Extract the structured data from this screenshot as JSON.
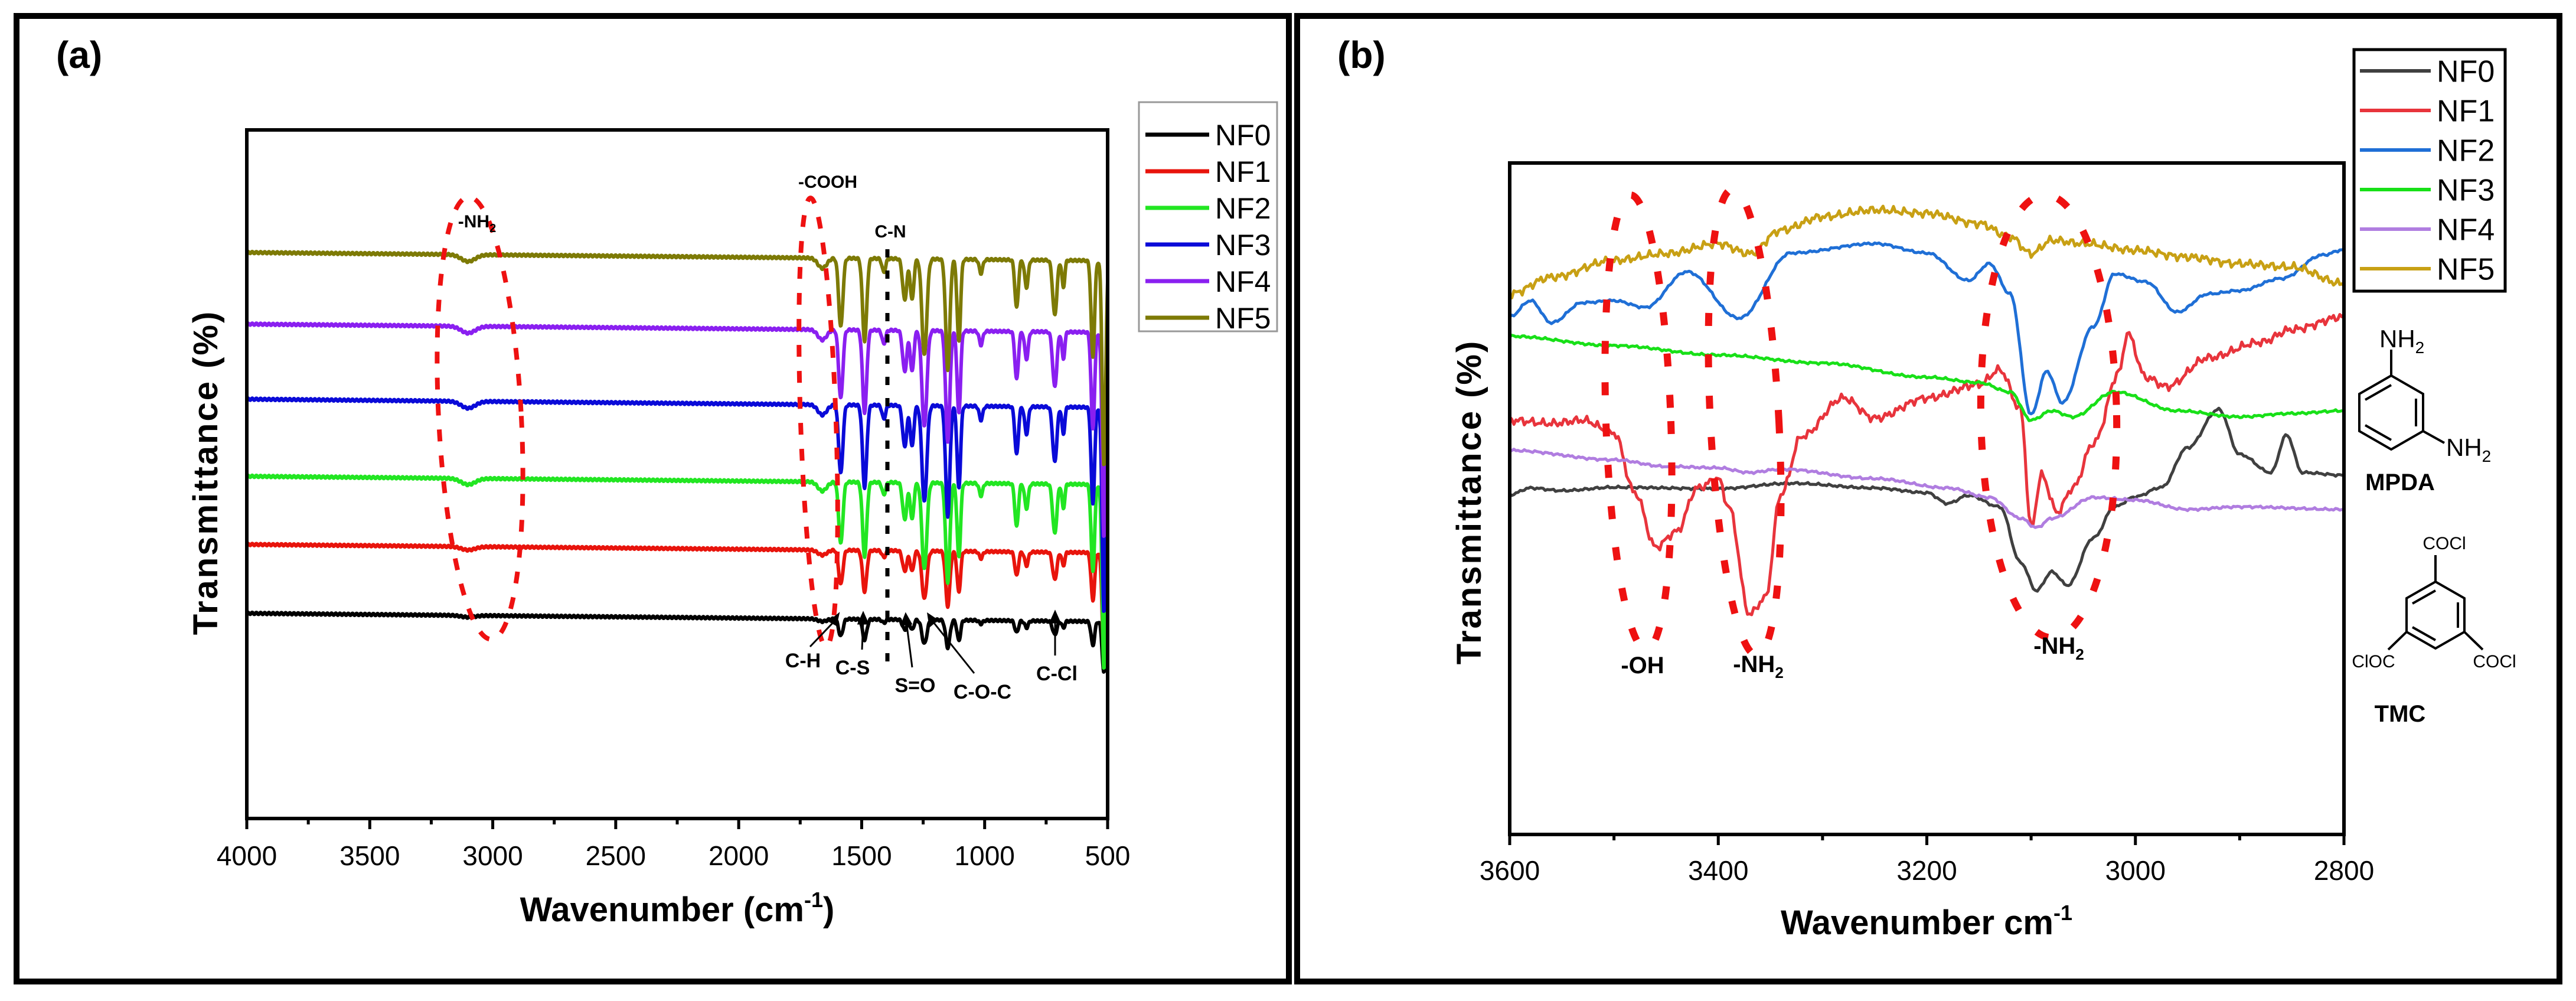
{
  "chart_data": [
    {
      "panel_label": "(a)",
      "type": "line",
      "xlabel": "Wavenumber (cm",
      "xlabel_sup": "-1",
      "xlabel_end": ")",
      "ylabel": "Transmittance (%)",
      "xlim": [
        4000,
        500
      ],
      "ylim": [
        0,
        100
      ],
      "x_ticks": [
        4000,
        3500,
        3000,
        2500,
        2000,
        1500,
        1000,
        500
      ],
      "grid": false,
      "legend_position": "outside-top-right",
      "peaks": [
        [
          3100,
          1,
          40
        ],
        [
          1660,
          1.5,
          25
        ],
        [
          1585,
          10,
          12
        ],
        [
          1488,
          12,
          12
        ],
        [
          1410,
          2,
          10
        ],
        [
          1325,
          6,
          12
        ],
        [
          1295,
          6,
          10
        ],
        [
          1245,
          14,
          14
        ],
        [
          1150,
          16,
          12
        ],
        [
          1105,
          12,
          10
        ],
        [
          1015,
          2,
          10
        ],
        [
          870,
          7,
          10
        ],
        [
          830,
          4,
          10
        ],
        [
          715,
          8,
          12
        ],
        [
          680,
          4,
          8
        ],
        [
          560,
          14,
          10
        ],
        [
          515,
          30,
          10
        ]
      ],
      "series": [
        {
          "name": "NF0",
          "color": "#000000",
          "offset": 29.8,
          "peak_scale": 0.25
        },
        {
          "name": "NF1",
          "color": "#e8140c",
          "offset": 39.8,
          "peak_scale": 0.5
        },
        {
          "name": "NF2",
          "color": "#22e622",
          "offset": 49.7,
          "peak_scale": 0.9
        },
        {
          "name": "NF3",
          "color": "#0a0ad8",
          "offset": 60.9,
          "peak_scale": 1.0
        },
        {
          "name": "NF4",
          "color": "#8a1ff0",
          "offset": 71.8,
          "peak_scale": 1.0
        },
        {
          "name": "NF5",
          "color": "#7d7a05",
          "offset": 82.2,
          "peak_scale": 1.0
        }
      ],
      "annotations": {
        "nh2": "-NH",
        "nh2_sub": "2",
        "cooh": "-COOH",
        "cn": "C-N",
        "ch": "C-H",
        "cs": "C-S",
        "so": "S=O",
        "coc": "C-O-C",
        "ccl": "C-Cl"
      }
    },
    {
      "panel_label": "(b)",
      "type": "line",
      "xlabel": "Wavenumber cm",
      "xlabel_sup": "-1",
      "ylabel": "Transmittance (%)",
      "xlim": [
        3600,
        2800
      ],
      "ylim": [
        0,
        100
      ],
      "x_ticks": [
        3600,
        3400,
        3200,
        3000,
        2800
      ],
      "grid": false,
      "legend_position": "outside-top-right",
      "series": [
        {
          "name": "NF0",
          "color": "#404040",
          "points": [
            [
              3600,
              50.6
            ],
            [
              3580,
              51.6
            ],
            [
              3550,
              51.2
            ],
            [
              3500,
              51.7
            ],
            [
              3400,
              51.5
            ],
            [
              3330,
              52.3
            ],
            [
              3250,
              51.6
            ],
            [
              3200,
              50.9
            ],
            [
              3180,
              49.3
            ],
            [
              3160,
              50.5
            ],
            [
              3130,
              48.8
            ],
            [
              3110,
              40.5
            ],
            [
              3095,
              36.3
            ],
            [
              3080,
              39.1
            ],
            [
              3065,
              37.1
            ],
            [
              3040,
              44.2
            ],
            [
              3020,
              48.8
            ],
            [
              3000,
              50.3
            ],
            [
              2975,
              51.7
            ],
            [
              2950,
              57.6
            ],
            [
              2920,
              63.3
            ],
            [
              2900,
              56.6
            ],
            [
              2870,
              53.9
            ],
            [
              2855,
              59.5
            ],
            [
              2840,
              53.9
            ],
            [
              2800,
              53.5
            ]
          ]
        },
        {
          "name": "NF1",
          "color": "#e8343c",
          "points": [
            [
              3600,
              61.7
            ],
            [
              3560,
              61.2
            ],
            [
              3530,
              61.7
            ],
            [
              3500,
              59.8
            ],
            [
              3480,
              50.9
            ],
            [
              3460,
              42.8
            ],
            [
              3440,
              45.1
            ],
            [
              3420,
              51.6
            ],
            [
              3400,
              53
            ],
            [
              3390,
              48.8
            ],
            [
              3370,
              32.8
            ],
            [
              3355,
              35.2
            ],
            [
              3340,
              50.7
            ],
            [
              3320,
              59.3
            ],
            [
              3280,
              65
            ],
            [
              3250,
              62
            ],
            [
              3200,
              65
            ],
            [
              3150,
              67
            ],
            [
              3130,
              69.2
            ],
            [
              3110,
              63.3
            ],
            [
              3100,
              45.7
            ],
            [
              3090,
              53.5
            ],
            [
              3075,
              48
            ],
            [
              3060,
              51.6
            ],
            [
              3040,
              58.3
            ],
            [
              3015,
              69
            ],
            [
              3008,
              74.7
            ],
            [
              2990,
              68.1
            ],
            [
              2970,
              66.7
            ],
            [
              2930,
              71
            ],
            [
              2880,
              73.3
            ],
            [
              2850,
              75.2
            ],
            [
              2800,
              77.1
            ]
          ]
        },
        {
          "name": "NF2",
          "color": "#1f6fd6",
          "points": [
            [
              3600,
              77.1
            ],
            [
              3580,
              79.5
            ],
            [
              3560,
              76.2
            ],
            [
              3530,
              79.2
            ],
            [
              3500,
              79.5
            ],
            [
              3470,
              78.5
            ],
            [
              3430,
              83.8
            ],
            [
              3380,
              76.9
            ],
            [
              3330,
              86.6
            ],
            [
              3250,
              88
            ],
            [
              3200,
              86.6
            ],
            [
              3160,
              82.5
            ],
            [
              3140,
              85
            ],
            [
              3120,
              80.5
            ],
            [
              3100,
              62.5
            ],
            [
              3085,
              69
            ],
            [
              3070,
              64.3
            ],
            [
              3040,
              75.7
            ],
            [
              3020,
              83.5
            ],
            [
              2990,
              82.3
            ],
            [
              2960,
              77.8
            ],
            [
              2930,
              80.5
            ],
            [
              2900,
              81
            ],
            [
              2860,
              82.8
            ],
            [
              2820,
              86.3
            ],
            [
              2800,
              87.1
            ]
          ]
        },
        {
          "name": "NF3",
          "color": "#18e018",
          "points": [
            [
              3600,
              74.2
            ],
            [
              3500,
              72.8
            ],
            [
              3400,
              71.4
            ],
            [
              3300,
              70.2
            ],
            [
              3200,
              68.1
            ],
            [
              3150,
              67.3
            ],
            [
              3120,
              65.9
            ],
            [
              3100,
              61.7
            ],
            [
              3080,
              63.1
            ],
            [
              3060,
              62.2
            ],
            [
              3020,
              65.9
            ],
            [
              2960,
              63.1
            ],
            [
              2900,
              62.2
            ],
            [
              2850,
              62.7
            ],
            [
              2800,
              63.1
            ]
          ]
        },
        {
          "name": "NF4",
          "color": "#b07de0",
          "points": [
            [
              3600,
              57.2
            ],
            [
              3500,
              55.8
            ],
            [
              3450,
              54.8
            ],
            [
              3400,
              54.6
            ],
            [
              3370,
              53.9
            ],
            [
              3340,
              54.4
            ],
            [
              3250,
              53
            ],
            [
              3180,
              51.6
            ],
            [
              3140,
              50.2
            ],
            [
              3110,
              47.1
            ],
            [
              3095,
              45.7
            ],
            [
              3080,
              47.1
            ],
            [
              3040,
              50.2
            ],
            [
              3000,
              49.8
            ],
            [
              2950,
              48.4
            ],
            [
              2900,
              48.8
            ],
            [
              2800,
              48.4
            ]
          ]
        },
        {
          "name": "NF5",
          "color": "#c8a014",
          "points": [
            [
              3600,
              80.5
            ],
            [
              3560,
              83
            ],
            [
              3500,
              85.5
            ],
            [
              3450,
              86.5
            ],
            [
              3400,
              88
            ],
            [
              3370,
              86.5
            ],
            [
              3340,
              90
            ],
            [
              3300,
              92
            ],
            [
              3250,
              93
            ],
            [
              3200,
              92.5
            ],
            [
              3150,
              91
            ],
            [
              3120,
              89
            ],
            [
              3100,
              86.5
            ],
            [
              3080,
              88.5
            ],
            [
              3050,
              88
            ],
            [
              3000,
              87
            ],
            [
              2950,
              86
            ],
            [
              2900,
              85
            ],
            [
              2850,
              84.5
            ],
            [
              2800,
              82
            ]
          ]
        }
      ],
      "annotations": {
        "oh": "-OH",
        "nh2_left": "-NH",
        "nh2_right": "-NH",
        "sub": "2"
      },
      "structures": {
        "mpda": {
          "name": "MPDA",
          "group": "NH",
          "sub": "2"
        },
        "tmc": {
          "name": "TMC",
          "group_top": "COCl",
          "group_left": "ClOC",
          "group_right": "COCl"
        }
      }
    }
  ]
}
